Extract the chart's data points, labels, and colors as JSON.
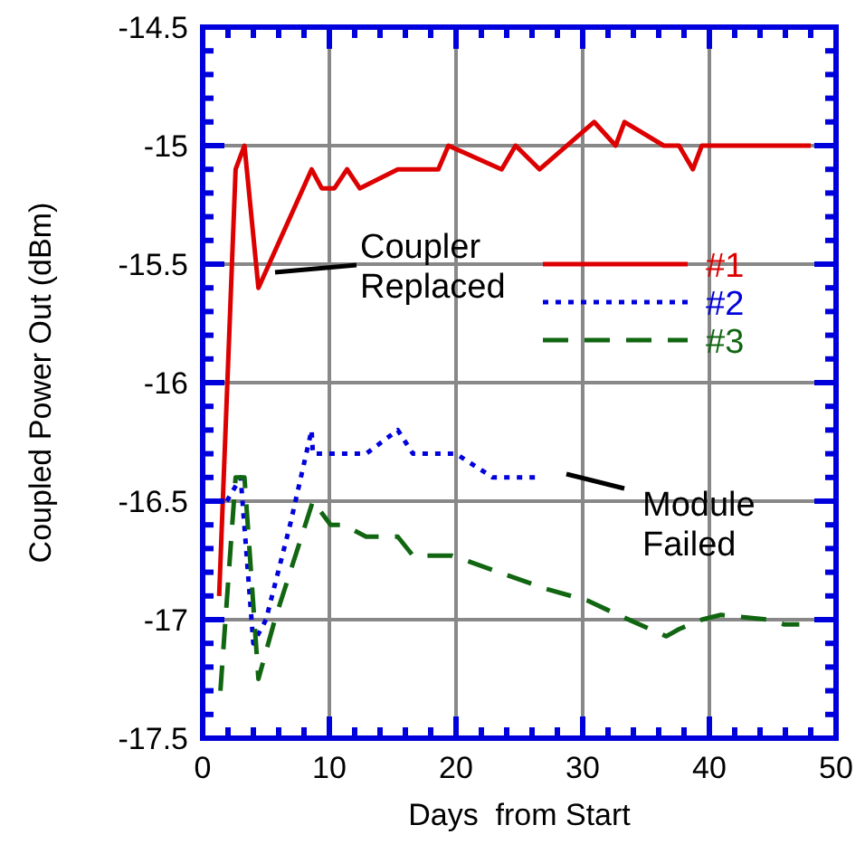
{
  "chart_data": {
    "type": "line",
    "xlabel": "Days  from Start",
    "ylabel": "Coupled Power Out (dBm)",
    "xlim": [
      0,
      50
    ],
    "xticks": [
      0,
      10,
      20,
      30,
      40,
      50
    ],
    "ylim": [
      -17.5,
      -14.5
    ],
    "yticks": [
      -17.5,
      -17,
      -16.5,
      -16,
      -15.5,
      -15,
      -14.5
    ],
    "grid": true,
    "legend": "right",
    "series": [
      {
        "name": "#1",
        "color": "#dd0000",
        "line_style": "solid",
        "x": [
          1.3,
          2.6,
          3.3,
          4.4,
          8.6,
          9.4,
          10.4,
          11.4,
          12.4,
          15.4,
          18.6,
          19.4,
          23.6,
          24.7,
          26.6,
          30.9,
          32.6,
          33.3,
          36.4,
          37.6,
          38.7,
          39.4,
          48
        ],
        "values": [
          -16.9,
          -15.1,
          -15,
          -15.6,
          -15.1,
          -15.18,
          -15.18,
          -15.1,
          -15.18,
          -15.1,
          -15.1,
          -15,
          -15.1,
          -15,
          -15.1,
          -14.9,
          -15,
          -14.9,
          -15,
          -15,
          -15.1,
          -15,
          -15
        ]
      },
      {
        "name": "#2",
        "color": "#0000dd",
        "line_style": "dotted",
        "x": [
          0.9,
          1.9,
          3,
          4,
          5,
          6.9,
          8.6,
          8.7,
          12.9,
          15.4,
          16.6,
          20,
          22.9,
          26.6
        ],
        "values": [
          -16.5,
          -16.5,
          -16.4,
          -17.1,
          -17,
          -16.6,
          -16.2,
          -16.3,
          -16.3,
          -16.2,
          -16.3,
          -16.3,
          -16.4,
          -16.4
        ]
      },
      {
        "name": "#3",
        "color": "#116611",
        "line_style": "dashed",
        "x": [
          1.4,
          2.6,
          3.3,
          4.4,
          5.7,
          8.7,
          10.1,
          11.1,
          12.9,
          15.4,
          16.6,
          19.7,
          27.1,
          30.4,
          32.8,
          36.6,
          37.6,
          39.4,
          40.9,
          44.7,
          45.9,
          47.1
        ],
        "values": [
          -17.3,
          -16.4,
          -16.4,
          -17.25,
          -17,
          -16.5,
          -16.6,
          -16.6,
          -16.65,
          -16.65,
          -16.73,
          -16.73,
          -16.87,
          -16.92,
          -16.98,
          -17.07,
          -17.04,
          -17,
          -16.98,
          -17,
          -17.02,
          -17.02
        ]
      }
    ],
    "annotations": [
      {
        "text": "Coupler\nReplaced",
        "x": 5,
        "y": -15.55
      },
      "Module\nFailed"
    ]
  }
}
